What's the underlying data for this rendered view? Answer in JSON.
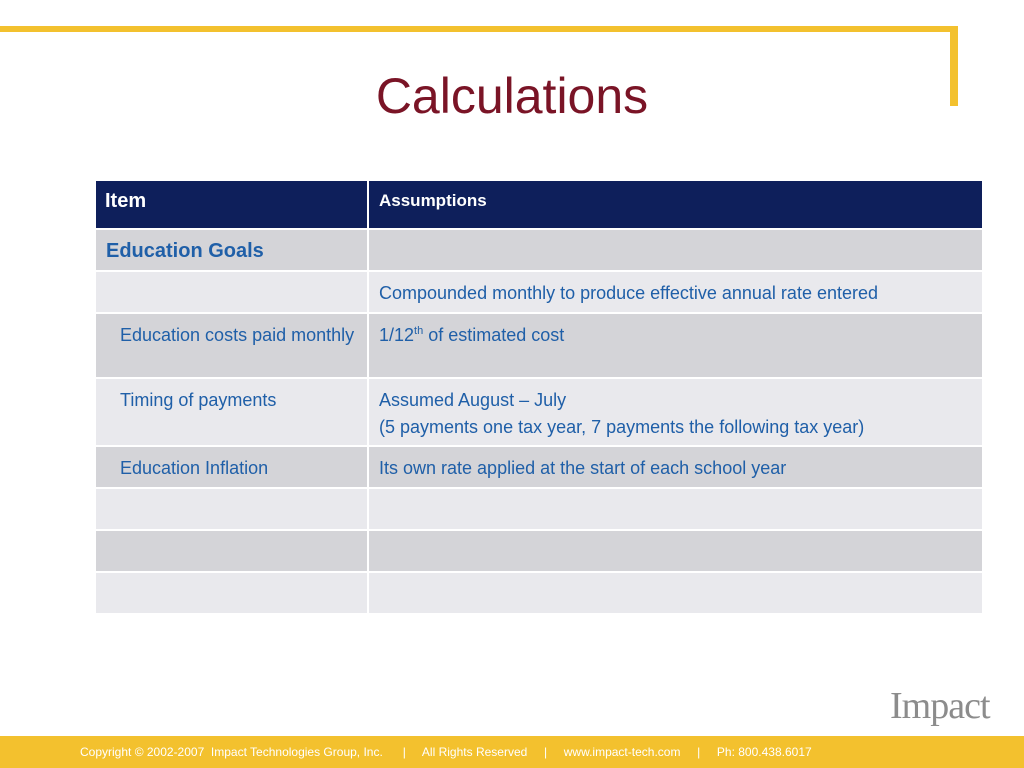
{
  "slide": {
    "title": "Calculations",
    "footer": "Copyright © 2002-2007  Impact Technologies Group, Inc.      |     All Rights Reserved     |     www.impact-tech.com     |     Ph: 800.438.6017",
    "logo": "Impact"
  },
  "table": {
    "headers": [
      "Item",
      "Assumptions"
    ],
    "rows": [
      {
        "item": "Education Goals",
        "assumption": ""
      },
      {
        "item": "",
        "assumption": "Compounded monthly to produce effective annual rate entered"
      },
      {
        "item": "Education costs paid monthly",
        "assumption_pre": "1/12",
        "assumption_sup": "th",
        "assumption_post": " of estimated cost"
      },
      {
        "item": "Timing of payments",
        "assumption_line1": "Assumed August – July",
        "assumption_line2": "(5 payments one tax year, 7 payments the following tax year)"
      },
      {
        "item": "Education Inflation",
        "assumption": "Its own rate applied at the start of each school year"
      },
      {
        "item": "",
        "assumption": ""
      },
      {
        "item": "",
        "assumption": ""
      },
      {
        "item": "",
        "assumption": ""
      }
    ]
  },
  "colors": {
    "accent": "#f3c12e",
    "title": "#7a1426",
    "header_bg": "#0e1f5b",
    "text": "#1f5fa8"
  }
}
